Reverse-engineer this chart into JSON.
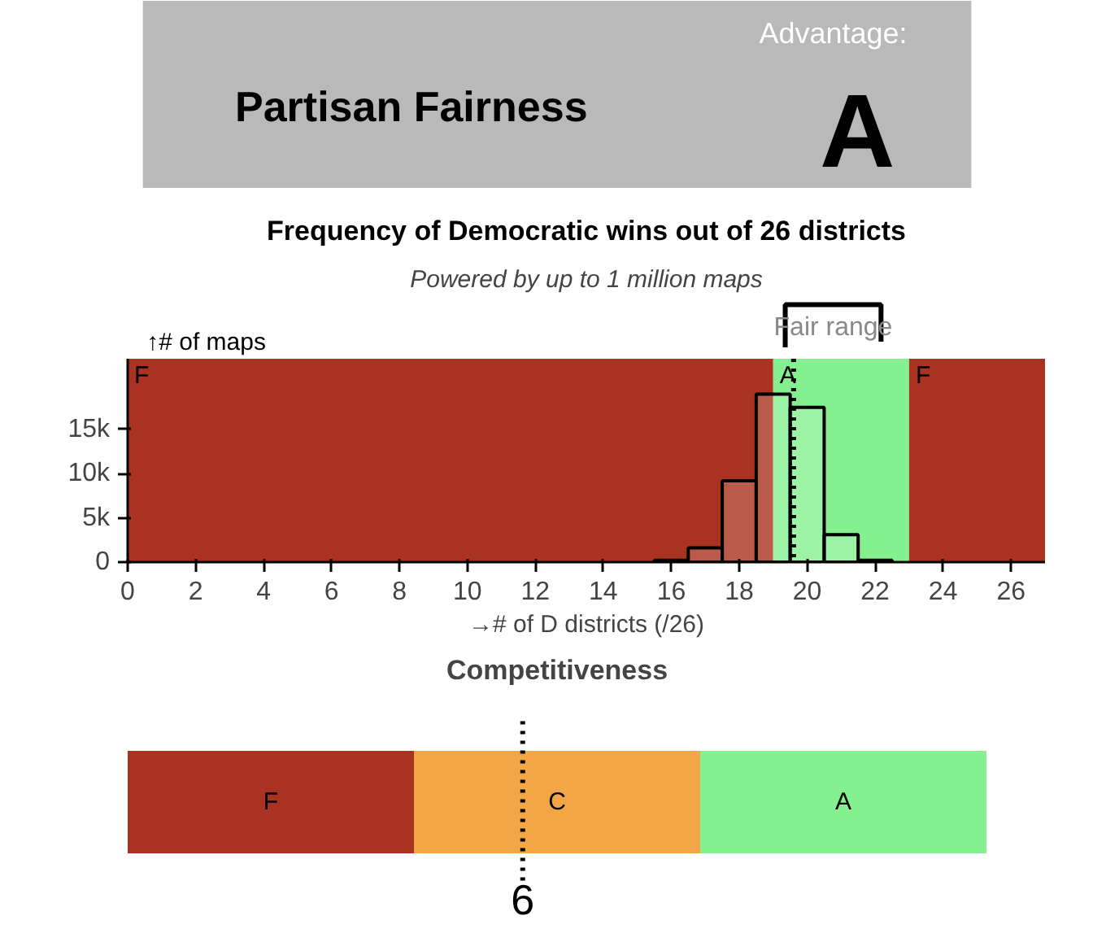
{
  "chart_data": [
    {
      "type": "other",
      "title": "Partisan Fairness",
      "annotations": [
        "Advantage:",
        "A"
      ]
    },
    {
      "type": "histogram",
      "title": "Frequency of Democratic wins out of 26 districts",
      "subtitle": "Powered by up to 1 million maps",
      "xlabel": "→# of D districts (/26)",
      "ylabel": "↑# of maps",
      "bins": [
        15.5,
        16.5,
        17.5,
        18.5,
        19.5,
        20.5,
        21.5,
        22.5
      ],
      "values": [
        200,
        1600,
        9200,
        19000,
        17500,
        3100,
        200
      ],
      "color": "#ffffff",
      "xlim": [
        0,
        27
      ],
      "xticks": [
        0,
        2,
        4,
        6,
        8,
        10,
        12,
        14,
        16,
        18,
        20,
        22,
        24,
        26
      ],
      "ylim": [
        0,
        23000
      ],
      "yticks": [
        0,
        {
          "value": 5000,
          "label": "5k"
        },
        {
          "value": 10000,
          "label": "10k"
        },
        {
          "value": 15000,
          "label": "15k"
        }
      ],
      "bands": [
        {
          "axis": "x",
          "from": 0,
          "to": 19,
          "label": "F",
          "color": "#a93220"
        },
        {
          "axis": "x",
          "from": 19,
          "to": 23,
          "label": "A",
          "color": "#85f08f"
        },
        {
          "axis": "x",
          "from": 23,
          "to": 27,
          "label": "F",
          "color": "#a93220"
        }
      ],
      "ref_lines": [
        {
          "axis": "x",
          "value": 19.6,
          "label": null,
          "line_style": "dotted",
          "color": "#000000"
        }
      ],
      "annotations": [
        "Fair range"
      ]
    },
    {
      "type": "other",
      "title": "Competitiveness",
      "categories": [
        "F",
        "C",
        "A"
      ],
      "colors": [
        "#a93220",
        "#f2a646",
        "#85f08f"
      ],
      "annotations": [
        "6"
      ]
    }
  ]
}
